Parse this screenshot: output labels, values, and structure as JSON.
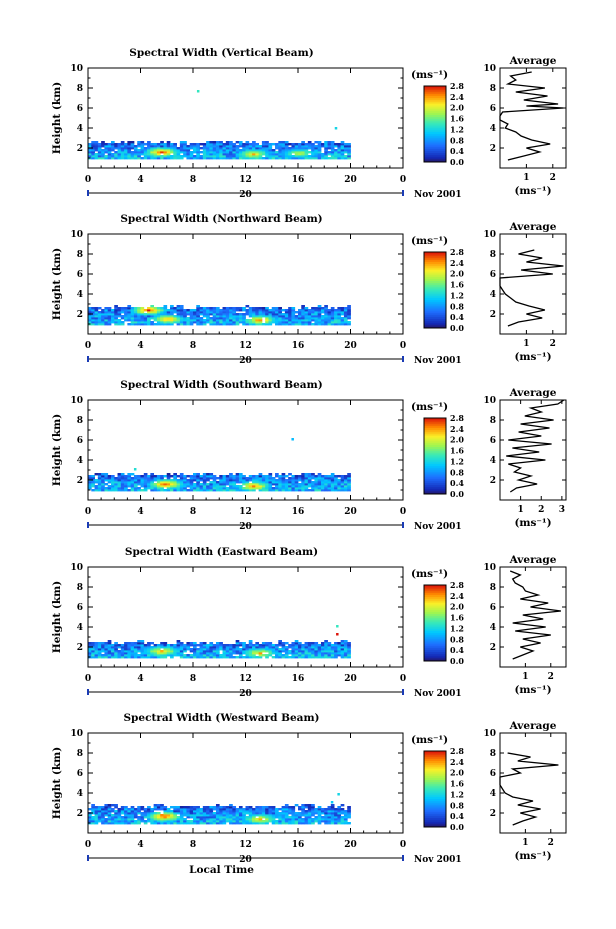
{
  "figure": {
    "date_label": "Nov 2001",
    "day_label": "20",
    "xlabel": "Local Time",
    "ylabel": "Height (km)",
    "units": "(ms⁻¹)",
    "average_title": "Average",
    "colorbar_ticks": [
      "0.0",
      "0.4",
      "0.8",
      "1.2",
      "1.6",
      "2.0",
      "2.4",
      "2.8"
    ],
    "x_ticks": [
      "0",
      "4",
      "8",
      "12",
      "16",
      "20",
      "0"
    ],
    "y_ticks": [
      "2",
      "4",
      "6",
      "8",
      "10"
    ]
  },
  "chart_data": [
    {
      "type": "heatmap",
      "title": "Spectral Width (Vertical Beam)",
      "xlabel": "Local Time",
      "ylabel": "Height (km)",
      "xlim": [
        0,
        24
      ],
      "ylim": [
        0,
        10
      ],
      "clim": [
        0,
        2.8
      ],
      "colorbar_label": "(ms⁻¹)",
      "echo_top_km": 2.5,
      "echo_bottom_km": 0.9,
      "data_end_hour": 20,
      "hotspots": [
        {
          "t": 5.5,
          "h": 1.5,
          "value": 2.6
        },
        {
          "t": 12.5,
          "h": 1.3,
          "value": 2.2
        },
        {
          "t": 16.0,
          "h": 1.4,
          "value": 1.9
        }
      ],
      "isolated_echoes": [
        {
          "t": 8.3,
          "h": 7.6,
          "value": 1.4
        },
        {
          "t": 18.8,
          "h": 3.9,
          "value": 1.2
        }
      ],
      "average_profile": {
        "title": "Average",
        "xlabel": "(ms⁻¹)",
        "xlim": [
          0,
          2.5
        ],
        "x_ticks": [
          "1",
          "2"
        ],
        "height_km": [
          0.8,
          1.2,
          1.6,
          2.0,
          2.4,
          2.8,
          3.2,
          3.6,
          4.0,
          4.4,
          4.8,
          5.2,
          5.6,
          6.0,
          6.2,
          6.4,
          6.8,
          7.2,
          7.6,
          8.0,
          8.4,
          8.8,
          9.2,
          9.6
        ],
        "width": [
          0.3,
          0.9,
          1.5,
          1.0,
          1.9,
          1.2,
          0.8,
          0.6,
          0.2,
          0.3,
          0.0,
          0.0,
          0.1,
          2.4,
          1.0,
          2.2,
          0.9,
          1.8,
          0.6,
          1.7,
          0.3,
          0.6,
          0.4,
          1.2
        ]
      }
    },
    {
      "type": "heatmap",
      "title": "Spectral Width (Northward Beam)",
      "xlabel": "Local Time",
      "ylabel": "Height (km)",
      "xlim": [
        0,
        24
      ],
      "ylim": [
        0,
        10
      ],
      "clim": [
        0,
        2.8
      ],
      "colorbar_label": "(ms⁻¹)",
      "echo_top_km": 2.6,
      "echo_bottom_km": 0.9,
      "data_end_hour": 20,
      "hotspots": [
        {
          "t": 4.5,
          "h": 2.3,
          "value": 2.6
        },
        {
          "t": 6.0,
          "h": 1.4,
          "value": 2.3
        },
        {
          "t": 13.0,
          "h": 1.3,
          "value": 2.4
        }
      ],
      "isolated_echoes": [],
      "average_profile": {
        "title": "Average",
        "xlabel": "(ms⁻¹)",
        "xlim": [
          0,
          2.5
        ],
        "x_ticks": [
          "1",
          "2"
        ],
        "height_km": [
          0.8,
          1.2,
          1.6,
          2.0,
          2.4,
          2.8,
          3.2,
          3.6,
          4.0,
          4.4,
          4.8,
          5.2,
          5.6,
          6.0,
          6.4,
          6.8,
          7.2,
          7.6,
          8.0,
          8.4
        ],
        "width": [
          0.3,
          0.7,
          1.6,
          1.0,
          1.7,
          1.1,
          0.6,
          0.4,
          0.2,
          0.1,
          0.0,
          0.0,
          0.0,
          2.0,
          0.8,
          2.4,
          1.0,
          1.6,
          0.7,
          1.3
        ]
      }
    },
    {
      "type": "heatmap",
      "title": "Spectral Width (Southward Beam)",
      "xlabel": "Local Time",
      "ylabel": "Height (km)",
      "xlim": [
        0,
        24
      ],
      "ylim": [
        0,
        10
      ],
      "clim": [
        0,
        2.8
      ],
      "colorbar_label": "(ms⁻¹)",
      "echo_top_km": 2.5,
      "echo_bottom_km": 0.9,
      "data_end_hour": 20,
      "hotspots": [
        {
          "t": 5.8,
          "h": 1.5,
          "value": 2.6
        },
        {
          "t": 12.5,
          "h": 1.3,
          "value": 2.4
        }
      ],
      "isolated_echoes": [
        {
          "t": 15.5,
          "h": 6.0,
          "value": 1.0
        },
        {
          "t": 3.5,
          "h": 3.0,
          "value": 1.3
        }
      ],
      "average_profile": {
        "title": "Average",
        "xlabel": "(ms⁻¹)",
        "xlim": [
          0,
          3.2
        ],
        "x_ticks": [
          "1",
          "2",
          "3"
        ],
        "height_km": [
          0.8,
          1.2,
          1.6,
          2.0,
          2.4,
          2.8,
          3.2,
          3.6,
          4.0,
          4.4,
          4.8,
          5.2,
          5.6,
          6.0,
          6.4,
          6.8,
          7.2,
          7.6,
          8.0,
          8.4,
          8.8,
          9.2,
          9.6,
          10.0
        ],
        "width": [
          0.5,
          0.8,
          1.8,
          0.9,
          1.5,
          0.7,
          1.0,
          0.4,
          2.2,
          0.3,
          1.9,
          0.6,
          2.5,
          0.4,
          2.0,
          0.9,
          2.4,
          1.0,
          2.6,
          1.2,
          2.0,
          1.5,
          2.8,
          3.1
        ]
      }
    },
    {
      "type": "heatmap",
      "title": "Spectral Width (Eastward Beam)",
      "xlabel": "Local Time",
      "ylabel": "Height (km)",
      "xlim": [
        0,
        24
      ],
      "ylim": [
        0,
        10
      ],
      "clim": [
        0,
        2.8
      ],
      "colorbar_label": "(ms⁻¹)",
      "echo_top_km": 2.4,
      "echo_bottom_km": 0.9,
      "data_end_hour": 20,
      "hotspots": [
        {
          "t": 5.5,
          "h": 1.5,
          "value": 2.3
        },
        {
          "t": 13.0,
          "h": 1.3,
          "value": 2.2
        }
      ],
      "isolated_echoes": [
        {
          "t": 18.9,
          "h": 3.2,
          "value": 2.8
        },
        {
          "t": 18.9,
          "h": 4.0,
          "value": 1.4
        }
      ],
      "average_profile": {
        "title": "Average",
        "xlabel": "(ms⁻¹)",
        "xlim": [
          0,
          2.6
        ],
        "x_ticks": [
          "1",
          "2"
        ],
        "height_km": [
          0.8,
          1.2,
          1.6,
          2.0,
          2.4,
          2.8,
          3.2,
          3.6,
          4.0,
          4.4,
          4.8,
          5.2,
          5.6,
          6.0,
          6.4,
          6.8,
          7.2,
          7.6,
          8.0,
          8.4,
          8.8,
          9.2,
          9.6
        ],
        "width": [
          0.5,
          0.9,
          1.3,
          0.8,
          1.6,
          0.9,
          2.0,
          0.6,
          1.8,
          0.5,
          1.7,
          0.9,
          2.4,
          1.2,
          1.9,
          0.8,
          1.5,
          1.0,
          0.9,
          0.6,
          0.5,
          0.8,
          0.4
        ]
      }
    },
    {
      "type": "heatmap",
      "title": "Spectral Width (Westward Beam)",
      "xlabel": "Local Time",
      "ylabel": "Height (km)",
      "xlim": [
        0,
        24
      ],
      "ylim": [
        0,
        10
      ],
      "clim": [
        0,
        2.8
      ],
      "colorbar_label": "(ms⁻¹)",
      "echo_top_km": 2.6,
      "echo_bottom_km": 0.9,
      "data_end_hour": 20,
      "hotspots": [
        {
          "t": 5.7,
          "h": 1.6,
          "value": 2.7
        },
        {
          "t": 13.0,
          "h": 1.3,
          "value": 2.3
        }
      ],
      "isolated_echoes": [
        {
          "t": 18.5,
          "h": 3.0,
          "value": 1.1
        },
        {
          "t": 19.0,
          "h": 3.8,
          "value": 1.2
        }
      ],
      "average_profile": {
        "title": "Average",
        "xlabel": "(ms⁻¹)",
        "xlim": [
          0,
          2.6
        ],
        "x_ticks": [
          "1",
          "2"
        ],
        "height_km": [
          0.8,
          1.2,
          1.6,
          2.0,
          2.4,
          2.8,
          3.2,
          3.6,
          4.0,
          4.4,
          4.8,
          5.2,
          5.6,
          6.0,
          6.4,
          6.8,
          7.2,
          7.6,
          8.0
        ],
        "width": [
          0.5,
          0.9,
          1.4,
          0.8,
          1.6,
          0.7,
          1.3,
          0.5,
          0.2,
          0.1,
          0.0,
          0.0,
          0.0,
          0.8,
          0.5,
          2.3,
          0.7,
          1.2,
          0.3
        ]
      }
    }
  ]
}
